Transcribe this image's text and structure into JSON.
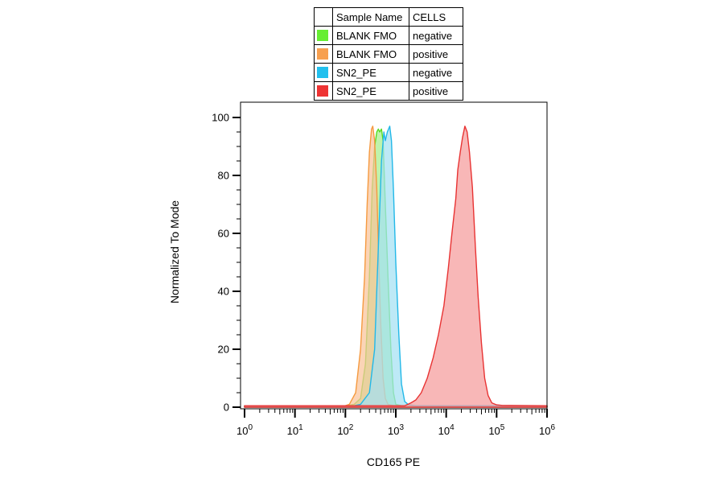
{
  "legend": {
    "header": {
      "name": "Sample Name",
      "cells": "CELLS"
    },
    "rows": [
      {
        "name": "BLANK FMO",
        "cells": "negative",
        "color": "#66ee33"
      },
      {
        "name": "BLANK FMO",
        "cells": "positive",
        "color": "#f7a050"
      },
      {
        "name": "SN2_PE",
        "cells": "negative",
        "color": "#22c0ee"
      },
      {
        "name": "SN2_PE",
        "cells": "positive",
        "color": "#ee3333"
      }
    ]
  },
  "chart_data": {
    "type": "area",
    "xlabel": "CD165 PE",
    "ylabel": "Normalized To Mode",
    "xscale": "log",
    "xlim": [
      1,
      1000000
    ],
    "ylim": [
      0,
      100
    ],
    "yticks": [
      0,
      20,
      40,
      60,
      80,
      100
    ],
    "xtick_labels": [
      {
        "base": "10",
        "exp": "0",
        "value": 1
      },
      {
        "base": "10",
        "exp": "1",
        "value": 10
      },
      {
        "base": "10",
        "exp": "2",
        "value": 100
      },
      {
        "base": "10",
        "exp": "3",
        "value": 1000
      },
      {
        "base": "10",
        "exp": "4",
        "value": 10000
      },
      {
        "base": "10",
        "exp": "5",
        "value": 100000
      },
      {
        "base": "10",
        "exp": "6",
        "value": 1000000
      }
    ],
    "series": [
      {
        "name": "BLANK FMO negative",
        "fill": "#a6ef8c",
        "stroke": "#55dd22",
        "points": [
          [
            1,
            0.5
          ],
          [
            100,
            0.5
          ],
          [
            150,
            1
          ],
          [
            200,
            3
          ],
          [
            250,
            15
          ],
          [
            300,
            45
          ],
          [
            340,
            75
          ],
          [
            380,
            90
          ],
          [
            420,
            95
          ],
          [
            450,
            96
          ],
          [
            480,
            95
          ],
          [
            520,
            96
          ],
          [
            560,
            92
          ],
          [
            620,
            70
          ],
          [
            700,
            45
          ],
          [
            800,
            20
          ],
          [
            900,
            5
          ],
          [
            1000,
            1
          ],
          [
            1300,
            0.5
          ],
          [
            1000000,
            0.5
          ]
        ]
      },
      {
        "name": "BLANK FMO positive",
        "fill": "#f9c39a",
        "stroke": "#f59a40",
        "points": [
          [
            1,
            0.5
          ],
          [
            100,
            0.5
          ],
          [
            120,
            1
          ],
          [
            160,
            5
          ],
          [
            200,
            20
          ],
          [
            240,
            45
          ],
          [
            270,
            70
          ],
          [
            300,
            88
          ],
          [
            330,
            96
          ],
          [
            350,
            97
          ],
          [
            380,
            92
          ],
          [
            420,
            75
          ],
          [
            460,
            50
          ],
          [
            500,
            30
          ],
          [
            560,
            10
          ],
          [
            620,
            3
          ],
          [
            700,
            1
          ],
          [
            900,
            0.5
          ],
          [
            1000000,
            0.5
          ]
        ]
      },
      {
        "name": "SN2_PE negative",
        "fill": "#a3e0f2",
        "stroke": "#22b8e8",
        "points": [
          [
            1,
            0.5
          ],
          [
            150,
            0.5
          ],
          [
            200,
            1
          ],
          [
            300,
            5
          ],
          [
            380,
            20
          ],
          [
            450,
            55
          ],
          [
            520,
            85
          ],
          [
            580,
            95
          ],
          [
            620,
            92
          ],
          [
            680,
            95
          ],
          [
            760,
            97
          ],
          [
            820,
            92
          ],
          [
            900,
            75
          ],
          [
            1000,
            50
          ],
          [
            1150,
            25
          ],
          [
            1300,
            8
          ],
          [
            1500,
            2
          ],
          [
            1800,
            0.8
          ],
          [
            2500,
            0.5
          ],
          [
            1000000,
            0.5
          ]
        ]
      },
      {
        "name": "SN2_PE positive",
        "fill": "#f59b9b",
        "stroke": "#e83333",
        "points": [
          [
            1,
            0.5
          ],
          [
            1500,
            0.5
          ],
          [
            2000,
            1.5
          ],
          [
            2500,
            2.5
          ],
          [
            3200,
            5
          ],
          [
            4200,
            10
          ],
          [
            5500,
            17
          ],
          [
            7000,
            25
          ],
          [
            9000,
            35
          ],
          [
            11000,
            48
          ],
          [
            13000,
            60
          ],
          [
            15500,
            72
          ],
          [
            17000,
            82
          ],
          [
            19000,
            88
          ],
          [
            21000,
            93
          ],
          [
            23500,
            97
          ],
          [
            26000,
            95
          ],
          [
            29000,
            88
          ],
          [
            33000,
            76
          ],
          [
            38000,
            55
          ],
          [
            43000,
            38
          ],
          [
            50000,
            22
          ],
          [
            58000,
            10
          ],
          [
            68000,
            4
          ],
          [
            80000,
            1.5
          ],
          [
            100000,
            0.8
          ],
          [
            130000,
            0.6
          ],
          [
            1000000,
            0.5
          ]
        ]
      }
    ]
  }
}
